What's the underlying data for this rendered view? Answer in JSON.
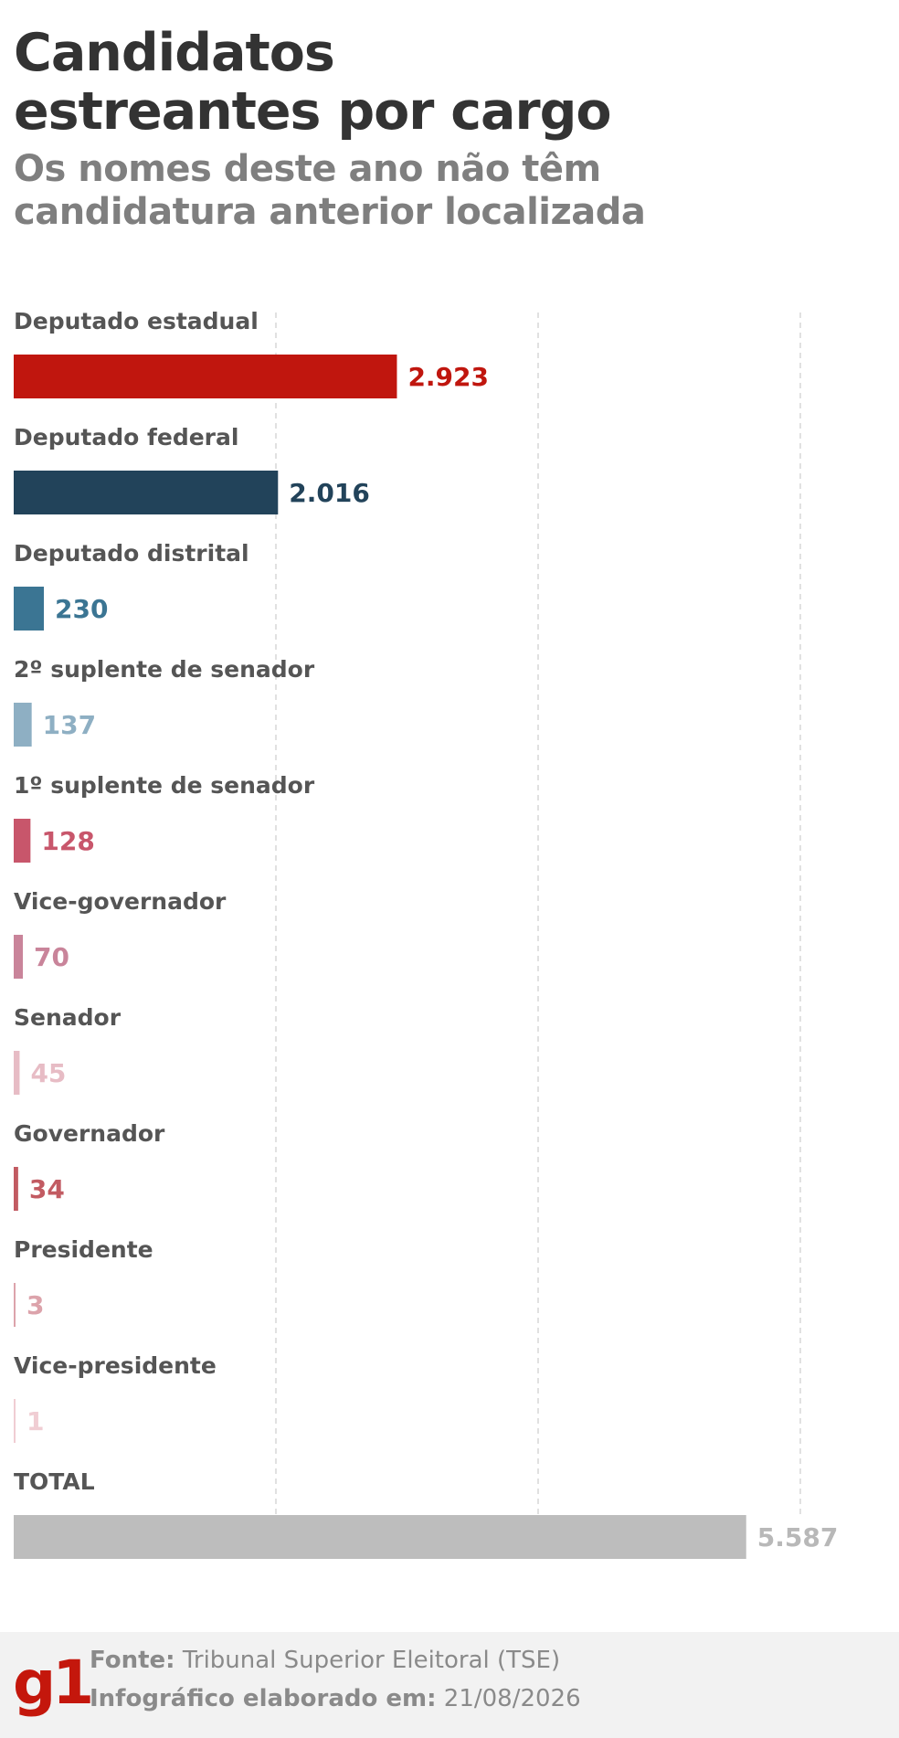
{
  "header": {
    "title_line1": "Candidatos",
    "title_line2": "estreantes por cargo",
    "subtitle_line1": "Os nomes deste ano não têm",
    "subtitle_line2": "candidatura anterior localizada"
  },
  "chart_data": {
    "type": "bar",
    "orientation": "horizontal",
    "title": "Candidatos estreantes por cargo",
    "subtitle": "Os nomes deste ano não têm candidatura anterior localizada",
    "categories": [
      "Deputado estadual",
      "Deputado federal",
      "Deputado distrital",
      "2º suplente de senador",
      "1º suplente de senador",
      "Vice-governador",
      "Senador",
      "Governador",
      "Presidente",
      "Vice-presidente",
      "TOTAL"
    ],
    "values": [
      2923,
      2016,
      230,
      137,
      128,
      70,
      45,
      34,
      3,
      1,
      5587
    ],
    "value_labels": [
      "2.923",
      "2.016",
      "230",
      "137",
      "128",
      "70",
      "45",
      "34",
      "3",
      "1",
      "5.587"
    ],
    "colors": [
      "#c0160e",
      "#22435a",
      "#3b7593",
      "#8eafc3",
      "#c8566b",
      "#c9849a",
      "#e7bcc5",
      "#c25b62",
      "#dca3ab",
      "#f0cdd3",
      "#bdbdbd"
    ],
    "xlim": [
      0,
      6000
    ],
    "gridlines": [
      0,
      2000,
      4000,
      6000
    ],
    "grid": true,
    "xlabel": "",
    "ylabel": ""
  },
  "footer": {
    "logo": "g1",
    "source_label": "Fonte:",
    "source_value": "Tribunal Superior Eleitoral (TSE)",
    "date_label": "Infográfico elaborado em:",
    "date_value": "21/08/2026"
  }
}
